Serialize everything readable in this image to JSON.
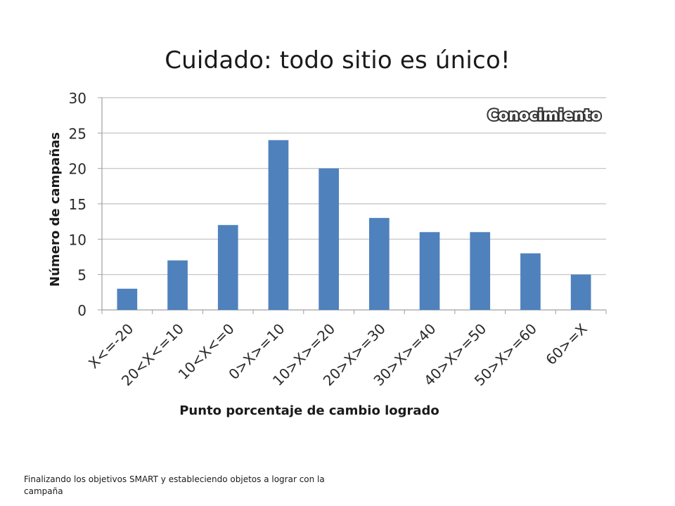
{
  "slide": {
    "title": "Cuidado: todo sitio es único!",
    "footer": "Finalizando los objetivos SMART y estableciendo objetos a lograr con la campaña"
  },
  "chart_data": {
    "type": "bar",
    "title": "Conocimiento",
    "xlabel": "Punto porcentaje de cambio logrado",
    "ylabel": "Número de campañas",
    "categories": [
      "X<=-20",
      "20<X<=10",
      "10<X<=0",
      "0>X>=10",
      "10>X>=20",
      "20>X>=30",
      "30>X>=40",
      "40>X>=50",
      "50>X>=60",
      "60>=X"
    ],
    "values": [
      3,
      7,
      12,
      24,
      20,
      13,
      11,
      11,
      8,
      5
    ],
    "ylim": [
      0,
      30
    ],
    "yticks": [
      "0",
      "5",
      "10",
      "15",
      "20",
      "25",
      "30"
    ],
    "grid": true,
    "bar_color": "#4f81bd"
  }
}
